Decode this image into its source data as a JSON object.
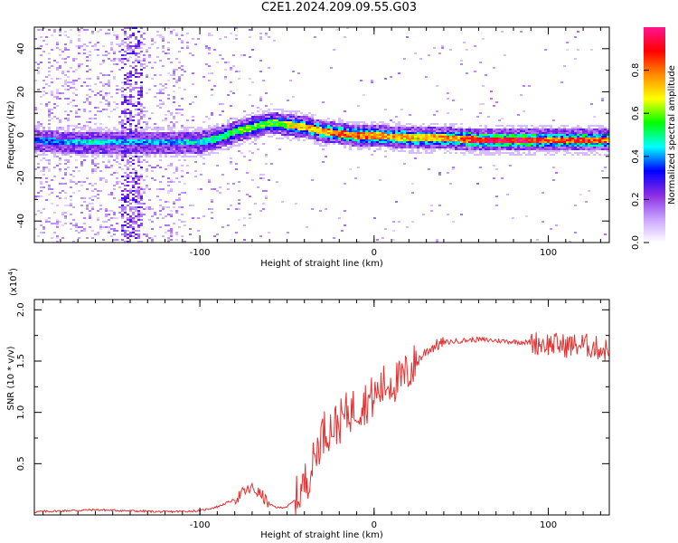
{
  "title": "C2E1.2024.209.09.55.G03",
  "chart_data": [
    {
      "type": "heatmap",
      "title": "C2E1.2024.209.09.55.G03",
      "xlabel": "Height of straight line (km)",
      "ylabel": "Frequency (Hz)",
      "xlim": [
        -195,
        135
      ],
      "ylim": [
        -50,
        50
      ],
      "x_ticks": [
        -100,
        0,
        100
      ],
      "y_ticks": [
        -40,
        -20,
        0,
        20,
        40
      ],
      "colorbar": {
        "label": "Normalized spectral amplitude",
        "range": [
          0,
          1
        ],
        "ticks": [
          0.0,
          0.2,
          0.4,
          0.6,
          0.8
        ],
        "colormap": [
          "#ffffff",
          "#c8a2ff",
          "#8a2be2",
          "#0000ff",
          "#00ffff",
          "#00ff00",
          "#ffff00",
          "#ff8c00",
          "#ff0000",
          "#ff1493"
        ]
      },
      "ridge": {
        "x": [
          -195,
          -180,
          -160,
          -140,
          -120,
          -100,
          -90,
          -80,
          -70,
          -60,
          -50,
          -40,
          -30,
          -20,
          -10,
          0,
          20,
          40,
          60,
          80,
          100,
          120,
          135
        ],
        "frequency": [
          -2,
          -3,
          -3,
          -3,
          -3,
          -3,
          -1,
          2,
          4,
          6,
          5,
          4,
          2,
          1,
          0,
          0,
          -1,
          -1,
          -2,
          -2,
          -2,
          -2,
          -2
        ],
        "amplitude": [
          0.35,
          0.4,
          0.45,
          0.4,
          0.4,
          0.45,
          0.5,
          0.55,
          0.6,
          0.55,
          0.65,
          0.7,
          0.75,
          0.8,
          0.8,
          0.75,
          0.7,
          0.75,
          0.9,
          0.95,
          0.8,
          0.85,
          0.8
        ]
      }
    },
    {
      "type": "line",
      "xlabel": "Height of straight line (km)",
      "ylabel": "SNR (10 * v/v)",
      "y_scale_label": "(x10^4)",
      "xlim": [
        -195,
        135
      ],
      "ylim": [
        0,
        2.1
      ],
      "x_ticks": [
        -100,
        0,
        100
      ],
      "y_ticks": [
        0.5,
        1.0,
        1.5,
        2.0
      ],
      "series": [
        {
          "color": "#e53030",
          "x": [
            -195,
            -180,
            -160,
            -140,
            -120,
            -100,
            -90,
            -80,
            -75,
            -70,
            -65,
            -60,
            -55,
            -50,
            -45,
            -40,
            -35,
            -30,
            -25,
            -20,
            -15,
            -10,
            -5,
            0,
            5,
            10,
            15,
            20,
            25,
            30,
            35,
            40,
            50,
            60,
            70,
            80,
            90,
            100,
            110,
            120,
            130,
            135
          ],
          "y": [
            0.03,
            0.04,
            0.05,
            0.04,
            0.03,
            0.04,
            0.08,
            0.15,
            0.22,
            0.26,
            0.2,
            0.1,
            0.07,
            0.08,
            0.15,
            0.3,
            0.5,
            0.8,
            0.85,
            0.9,
            1.0,
            1.05,
            1.1,
            1.15,
            1.25,
            1.3,
            1.3,
            1.4,
            1.5,
            1.6,
            1.65,
            1.68,
            1.7,
            1.71,
            1.7,
            1.69,
            1.68,
            1.67,
            1.65,
            1.66,
            1.62,
            1.6
          ]
        }
      ]
    }
  ]
}
